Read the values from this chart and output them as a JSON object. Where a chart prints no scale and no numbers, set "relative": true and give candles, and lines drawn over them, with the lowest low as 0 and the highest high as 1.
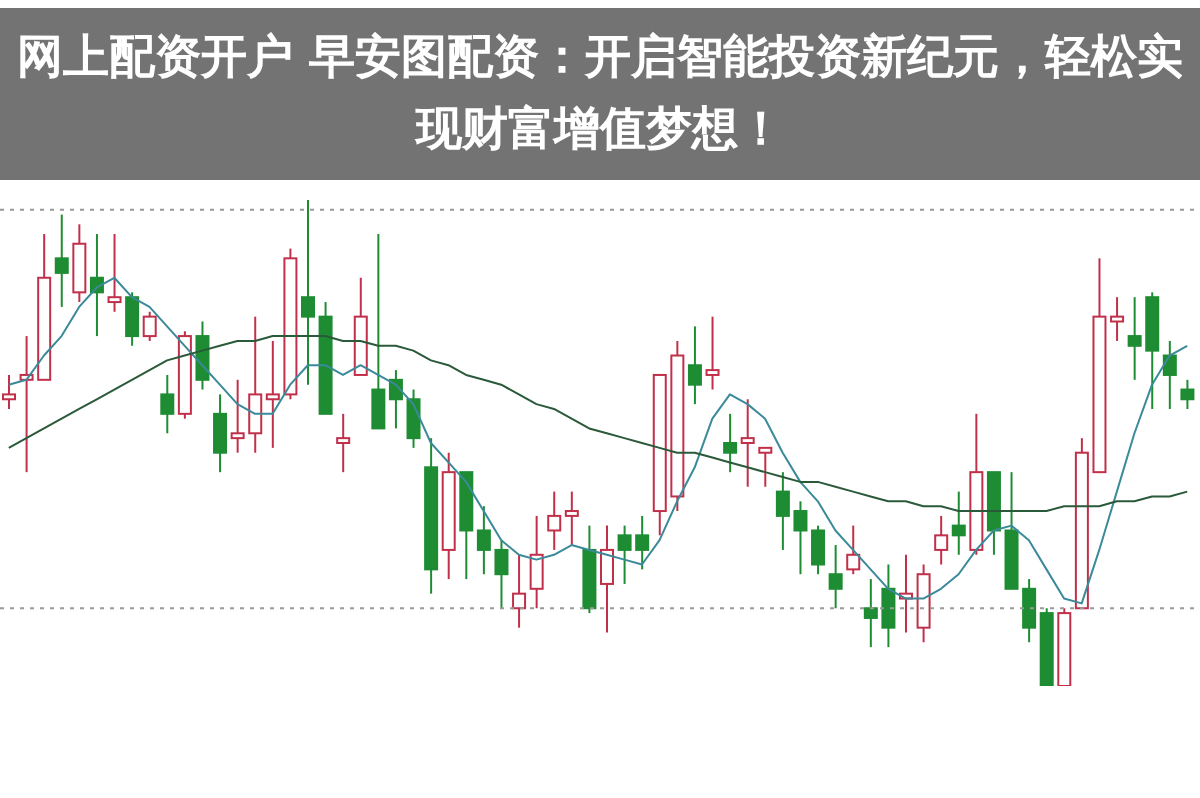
{
  "chart_data": {
    "type": "candlestick",
    "relative": true,
    "title": "网上配资开户 早安图配资：开启智能投资新纪元，轻松实现财富增值梦想！",
    "categories": [
      null,
      null,
      null,
      null,
      null,
      null,
      null,
      null,
      null,
      null,
      null,
      null,
      null,
      null,
      null,
      null,
      null,
      null,
      null,
      null,
      null,
      null,
      null,
      null,
      null,
      null,
      null,
      null,
      null,
      null,
      null,
      null,
      null,
      null,
      null,
      null,
      null,
      null,
      null,
      null,
      null,
      null,
      null,
      null,
      null,
      null,
      null,
      null,
      null,
      null,
      null,
      null,
      null,
      null,
      null,
      null,
      null,
      null,
      null,
      null,
      null,
      null,
      null,
      null,
      null,
      null,
      null,
      null
    ],
    "ohlc": [
      [
        0.59,
        0.64,
        0.57,
        0.6
      ],
      [
        0.63,
        0.72,
        0.44,
        0.64
      ],
      [
        0.63,
        0.93,
        0.63,
        0.84
      ],
      [
        0.88,
        0.97,
        0.78,
        0.85
      ],
      [
        0.81,
        0.95,
        0.79,
        0.91
      ],
      [
        0.84,
        0.93,
        0.72,
        0.81
      ],
      [
        0.79,
        0.93,
        0.77,
        0.8
      ],
      [
        0.8,
        0.81,
        0.7,
        0.72
      ],
      [
        0.72,
        0.77,
        0.71,
        0.76
      ],
      [
        0.6,
        0.64,
        0.52,
        0.56
      ],
      [
        0.56,
        0.73,
        0.55,
        0.72
      ],
      [
        0.72,
        0.75,
        0.61,
        0.63
      ],
      [
        0.56,
        0.6,
        0.44,
        0.48
      ],
      [
        0.51,
        0.63,
        0.48,
        0.52
      ],
      [
        0.52,
        0.76,
        0.48,
        0.6
      ],
      [
        0.59,
        0.71,
        0.49,
        0.6
      ],
      [
        0.6,
        0.9,
        0.59,
        0.88
      ],
      [
        0.8,
        1,
        0.62,
        0.76
      ],
      [
        0.76,
        0.79,
        0.56,
        0.56
      ],
      [
        0.5,
        0.56,
        0.44,
        0.51
      ],
      [
        0.64,
        0.84,
        0.64,
        0.76
      ],
      [
        0.61,
        0.93,
        0.53,
        0.53
      ],
      [
        0.63,
        0.65,
        0.53,
        0.59
      ],
      [
        0.59,
        0.61,
        0.49,
        0.51
      ],
      [
        0.45,
        0.51,
        0.19,
        0.24
      ],
      [
        0.28,
        0.48,
        0.22,
        0.44
      ],
      [
        0.44,
        0.44,
        0.22,
        0.32
      ],
      [
        0.32,
        0.37,
        0.23,
        0.28
      ],
      [
        0.28,
        0.3,
        0.16,
        0.23
      ],
      [
        0.16,
        0.27,
        0.12,
        0.19
      ],
      [
        0.2,
        0.35,
        0.16,
        0.27
      ],
      [
        0.32,
        0.4,
        0.28,
        0.35
      ],
      [
        0.35,
        0.4,
        0.29,
        0.36
      ],
      [
        0.28,
        0.33,
        0.15,
        0.16
      ],
      [
        0.21,
        0.33,
        0.11,
        0.28
      ],
      [
        0.31,
        0.33,
        0.21,
        0.28
      ],
      [
        0.31,
        0.35,
        0.24,
        0.28
      ],
      [
        0.36,
        0.64,
        0.31,
        0.64
      ],
      [
        0.39,
        0.71,
        0.36,
        0.68
      ],
      [
        0.66,
        0.74,
        0.58,
        0.62
      ],
      [
        0.64,
        0.76,
        0.61,
        0.65
      ],
      [
        0.5,
        0.56,
        0.44,
        0.48
      ],
      [
        0.5,
        0.59,
        0.41,
        0.51
      ],
      [
        0.48,
        0.49,
        0.41,
        0.49
      ],
      [
        0.4,
        0.44,
        0.28,
        0.35
      ],
      [
        0.36,
        0.38,
        0.23,
        0.32
      ],
      [
        0.32,
        0.33,
        0.23,
        0.25
      ],
      [
        0.23,
        0.29,
        0.16,
        0.2
      ],
      [
        0.24,
        0.33,
        0.23,
        0.27
      ],
      [
        0.16,
        0.22,
        0.08,
        0.14
      ],
      [
        0.2,
        0.25,
        0.08,
        0.12
      ],
      [
        0.18,
        0.27,
        0.11,
        0.19
      ],
      [
        0.12,
        0.25,
        0.09,
        0.23
      ],
      [
        0.28,
        0.35,
        0.25,
        0.31
      ],
      [
        0.33,
        0.4,
        0.27,
        0.31
      ],
      [
        0.28,
        0.56,
        0.27,
        0.44
      ],
      [
        0.44,
        0.44,
        0.27,
        0.32
      ],
      [
        0.32,
        0.44,
        0.2,
        0.2
      ],
      [
        0.2,
        0.22,
        0.09,
        0.12
      ],
      [
        0.15,
        0.16,
        0,
        0
      ],
      [
        0,
        0.16,
        0,
        0.15
      ],
      [
        0.16,
        0.51,
        0.16,
        0.48
      ],
      [
        0.44,
        0.88,
        0.44,
        0.76
      ],
      [
        0.75,
        0.8,
        0.71,
        0.76
      ],
      [
        0.72,
        0.8,
        0.63,
        0.7
      ],
      [
        0.8,
        0.81,
        0.57,
        0.69
      ],
      [
        0.68,
        0.71,
        0.57,
        0.64
      ],
      [
        0.61,
        0.63,
        0.57,
        0.59
      ]
    ],
    "colors": [
      "#c0304a",
      "#c0304a",
      "#c0304a",
      "#1e8c32",
      "#c0304a",
      "#1e8c32",
      "#c0304a",
      "#1e8c32",
      "#c0304a",
      "#1e8c32",
      "#c0304a",
      "#1e8c32",
      "#1e8c32",
      "#c0304a",
      "#c0304a",
      "#c0304a",
      "#c0304a",
      "#1e8c32",
      "#1e8c32",
      "#c0304a",
      "#c0304a",
      "#1e8c32",
      "#1e8c32",
      "#1e8c32",
      "#1e8c32",
      "#c0304a",
      "#1e8c32",
      "#1e8c32",
      "#1e8c32",
      "#c0304a",
      "#c0304a",
      "#c0304a",
      "#c0304a",
      "#1e8c32",
      "#c0304a",
      "#1e8c32",
      "#1e8c32",
      "#c0304a",
      "#c0304a",
      "#1e8c32",
      "#c0304a",
      "#1e8c32",
      "#c0304a",
      "#c0304a",
      "#1e8c32",
      "#1e8c32",
      "#1e8c32",
      "#1e8c32",
      "#c0304a",
      "#1e8c32",
      "#1e8c32",
      "#c0304a",
      "#c0304a",
      "#c0304a",
      "#1e8c32",
      "#c0304a",
      "#1e8c32",
      "#1e8c32",
      "#1e8c32",
      "#1e8c32",
      "#c0304a",
      "#c0304a",
      "#c0304a",
      "#c0304a",
      "#1e8c32",
      "#1e8c32",
      "#1e8c32",
      "#1e8c32"
    ],
    "series": [
      {
        "type": "line",
        "color": "#3a8a9a",
        "values": [
          0.62,
          0.63,
          0.68,
          0.72,
          0.78,
          0.82,
          0.84,
          0.8,
          0.78,
          0.74,
          0.7,
          0.66,
          0.62,
          0.58,
          0.56,
          0.56,
          0.62,
          0.66,
          0.66,
          0.64,
          0.66,
          0.64,
          0.62,
          0.58,
          0.5,
          0.46,
          0.42,
          0.36,
          0.3,
          0.27,
          0.26,
          0.27,
          0.29,
          0.28,
          0.27,
          0.26,
          0.25,
          0.3,
          0.38,
          0.45,
          0.55,
          0.6,
          0.58,
          0.55,
          0.48,
          0.42,
          0.38,
          0.32,
          0.28,
          0.24,
          0.2,
          0.18,
          0.18,
          0.2,
          0.23,
          0.28,
          0.32,
          0.33,
          0.3,
          0.24,
          0.18,
          0.17,
          0.28,
          0.4,
          0.52,
          0.62,
          0.68,
          0.7
        ]
      },
      {
        "type": "line",
        "color": "#2a5a3a",
        "values": [
          0.49,
          0.51,
          0.53,
          0.55,
          0.57,
          0.59,
          0.61,
          0.63,
          0.65,
          0.67,
          0.68,
          0.69,
          0.7,
          0.71,
          0.71,
          0.72,
          0.72,
          0.72,
          0.72,
          0.71,
          0.71,
          0.7,
          0.7,
          0.69,
          0.67,
          0.66,
          0.64,
          0.63,
          0.62,
          0.6,
          0.58,
          0.57,
          0.55,
          0.53,
          0.52,
          0.51,
          0.5,
          0.49,
          0.48,
          0.48,
          0.47,
          0.46,
          0.45,
          0.44,
          0.43,
          0.42,
          0.42,
          0.41,
          0.4,
          0.39,
          0.38,
          0.38,
          0.37,
          0.37,
          0.36,
          0.36,
          0.36,
          0.36,
          0.36,
          0.36,
          0.37,
          0.37,
          0.37,
          0.38,
          0.38,
          0.39,
          0.39,
          0.4
        ]
      }
    ],
    "ref_lines": [
      {
        "axis": "y",
        "value": 0.98,
        "color": "#999999",
        "line_style": "dotted"
      },
      {
        "axis": "y",
        "value": 0.16,
        "color": "#999999",
        "line_style": "dotted"
      }
    ]
  }
}
